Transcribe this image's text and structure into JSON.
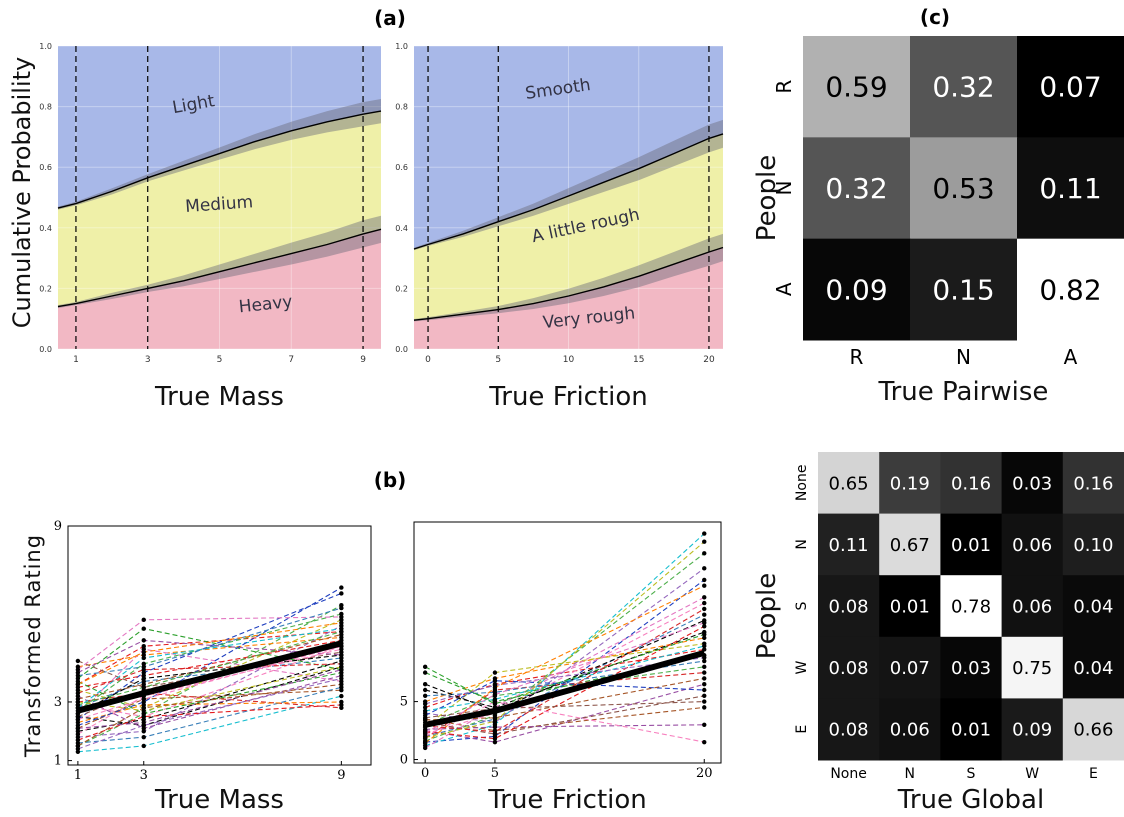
{
  "panel_labels": {
    "a": "(a)",
    "b": "(b)",
    "c": "(c)"
  },
  "chart_data": [
    {
      "id": "a-mass",
      "type": "area",
      "ylabel": "Cumulative Probability",
      "xlabel": "True Mass",
      "xlim": [
        0.5,
        9.5
      ],
      "ylim": [
        0,
        1
      ],
      "xticks": [
        "1",
        "3",
        "5",
        "7",
        "9"
      ],
      "yticks": [
        "0.0",
        "0.2",
        "0.4",
        "0.6",
        "0.8",
        "1.0"
      ],
      "vlines": [
        1,
        3,
        9
      ],
      "grid": true,
      "x": [
        0.5,
        1,
        2,
        3,
        4,
        5,
        6,
        7,
        8,
        9,
        9.5
      ],
      "boundaries": [
        {
          "values": [
            0.14,
            0.15,
            0.175,
            0.2,
            0.225,
            0.255,
            0.285,
            0.315,
            0.345,
            0.38,
            0.395
          ],
          "band_halfwidth": [
            0.005,
            0.005,
            0.01,
            0.012,
            0.018,
            0.024,
            0.03,
            0.036,
            0.04,
            0.045,
            0.045
          ]
        },
        {
          "values": [
            0.465,
            0.48,
            0.52,
            0.565,
            0.605,
            0.645,
            0.685,
            0.72,
            0.75,
            0.775,
            0.785
          ],
          "band_halfwidth": [
            0.005,
            0.006,
            0.01,
            0.012,
            0.016,
            0.02,
            0.025,
            0.03,
            0.035,
            0.04,
            0.04
          ]
        }
      ],
      "regions": [
        {
          "name": "Heavy",
          "color": "#f2b8c4",
          "label_x": 6.3,
          "label_y": 0.13,
          "rotate": -6
        },
        {
          "name": "Medium",
          "color": "#eff0a8",
          "label_x": 5.0,
          "label_y": 0.46,
          "rotate": -4
        },
        {
          "name": "Light",
          "color": "#a8b8e8",
          "label_x": 4.3,
          "label_y": 0.79,
          "rotate": -10
        }
      ]
    },
    {
      "id": "a-friction",
      "type": "area",
      "xlabel": "True Friction",
      "xlim": [
        -1,
        21
      ],
      "ylim": [
        0,
        1
      ],
      "xticks": [
        "0",
        "5",
        "10",
        "15",
        "20"
      ],
      "xtick_values": [
        0,
        5,
        10,
        15,
        20
      ],
      "yticks": [
        "0.0",
        "0.2",
        "0.4",
        "0.6",
        "0.8",
        "1.0"
      ],
      "vlines": [
        0,
        5,
        20
      ],
      "grid": true,
      "x": [
        -1,
        0,
        2.5,
        5,
        7.5,
        10,
        12.5,
        15,
        17.5,
        20,
        21
      ],
      "boundaries": [
        {
          "values": [
            0.095,
            0.1,
            0.115,
            0.13,
            0.15,
            0.175,
            0.205,
            0.24,
            0.28,
            0.32,
            0.335
          ],
          "band_halfwidth": [
            0.004,
            0.005,
            0.008,
            0.012,
            0.018,
            0.024,
            0.03,
            0.036,
            0.04,
            0.045,
            0.045
          ]
        },
        {
          "values": [
            0.33,
            0.345,
            0.38,
            0.42,
            0.46,
            0.505,
            0.55,
            0.595,
            0.645,
            0.695,
            0.71
          ],
          "band_halfwidth": [
            0.004,
            0.005,
            0.01,
            0.015,
            0.02,
            0.026,
            0.032,
            0.038,
            0.042,
            0.046,
            0.046
          ]
        }
      ],
      "regions": [
        {
          "name": "Very rough",
          "color": "#f2b8c4",
          "label_x": 11.5,
          "label_y": 0.085,
          "rotate": -6
        },
        {
          "name": "A little rough",
          "color": "#eff0a8",
          "label_x": 11.3,
          "label_y": 0.39,
          "rotate": -12
        },
        {
          "name": "Smooth",
          "color": "#a8b8e8",
          "label_x": 9.3,
          "label_y": 0.84,
          "rotate": -8
        }
      ]
    },
    {
      "id": "b-mass",
      "type": "line",
      "ylabel": "Transformed  Rating",
      "xlabel": "True Mass",
      "xlim": [
        0.7,
        9.9
      ],
      "ylim": [
        0.85,
        9.0
      ],
      "xticks": [
        "1",
        "3",
        "9"
      ],
      "xtick_values": [
        1,
        3,
        9
      ],
      "yticks": [
        "1",
        "3",
        "9"
      ],
      "ytick_values": [
        1,
        3,
        9
      ],
      "x": [
        1,
        3,
        9
      ],
      "mean_line": [
        2.7,
        3.3,
        5.0
      ],
      "individual_lines": [
        [
          2.5,
          2.2,
          4.2
        ],
        [
          3.6,
          4.9,
          5.4
        ],
        [
          2.8,
          3.7,
          4.5
        ],
        [
          1.5,
          2.6,
          6.3
        ],
        [
          3.2,
          2.1,
          3.9
        ],
        [
          4.2,
          4.6,
          5.2
        ],
        [
          2.1,
          3.1,
          3.4
        ],
        [
          2.9,
          2.5,
          4.9
        ],
        [
          1.3,
          1.5,
          3.2
        ],
        [
          3.8,
          5.5,
          4.1
        ],
        [
          2.4,
          4.0,
          6.7
        ],
        [
          3.0,
          3.3,
          2.8
        ],
        [
          1.8,
          2.0,
          5.6
        ],
        [
          4.4,
          3.5,
          4.7
        ],
        [
          2.6,
          4.8,
          3.7
        ],
        [
          3.4,
          2.8,
          5.8
        ],
        [
          2.0,
          2.4,
          4.4
        ],
        [
          3.5,
          3.9,
          5.1
        ],
        [
          1.6,
          1.8,
          3.5
        ],
        [
          2.7,
          4.3,
          6.0
        ],
        [
          4.0,
          5.1,
          4.6
        ],
        [
          2.3,
          2.9,
          3.0
        ],
        [
          3.1,
          3.6,
          5.3
        ],
        [
          1.9,
          3.2,
          4.8
        ],
        [
          2.8,
          4.5,
          5.5
        ],
        [
          3.7,
          2.6,
          4.0
        ],
        [
          2.2,
          3.0,
          6.9
        ],
        [
          3.3,
          4.1,
          4.3
        ],
        [
          1.4,
          2.2,
          3.8
        ],
        [
          2.5,
          3.4,
          5.0
        ],
        [
          4.1,
          5.8,
          5.9
        ],
        [
          3.0,
          2.7,
          4.2
        ],
        [
          2.6,
          3.8,
          4.6
        ],
        [
          1.7,
          2.5,
          2.9
        ],
        [
          3.9,
          4.2,
          6.2
        ],
        [
          2.9,
          3.5,
          5.4
        ],
        [
          2.1,
          2.3,
          4.1
        ],
        [
          3.6,
          4.7,
          5.7
        ],
        [
          1.5,
          2.8,
          3.6
        ],
        [
          2.4,
          3.1,
          4.9
        ]
      ],
      "line_colors": [
        "#000000",
        "#e41a1c",
        "#377eb8",
        "#4daf4a",
        "#984ea3",
        "#ff7f00",
        "#a65628",
        "#f781bf",
        "#17becf",
        "#2ca02c",
        "#1f3fbf",
        "#d62728",
        "#9467bd",
        "#8c564b",
        "#e377c2",
        "#bcbd22"
      ]
    },
    {
      "id": "b-friction",
      "type": "line",
      "xlabel": "True Friction",
      "xlim": [
        -0.8,
        21.2
      ],
      "ylim": [
        -0.3,
        20.5
      ],
      "xticks": [
        "0",
        "5",
        "20"
      ],
      "xtick_values": [
        0,
        5,
        20
      ],
      "yticks": [
        "0",
        "5"
      ],
      "ytick_values": [
        0,
        5
      ],
      "x": [
        0,
        5,
        20
      ],
      "mean_line": [
        3.0,
        4.2,
        9.2
      ],
      "individual_lines": [
        [
          2.0,
          3.5,
          12.5
        ],
        [
          4.5,
          6.5,
          9.5
        ],
        [
          1.5,
          2.0,
          15.5
        ],
        [
          3.0,
          5.5,
          8.0
        ],
        [
          6.0,
          4.5,
          11.0
        ],
        [
          2.5,
          1.5,
          6.5
        ],
        [
          1.2,
          3.0,
          19.5
        ],
        [
          5.0,
          7.0,
          10.5
        ],
        [
          3.5,
          2.5,
          4.5
        ],
        [
          2.2,
          4.0,
          13.5
        ],
        [
          7.5,
          5.0,
          9.0
        ],
        [
          1.8,
          6.0,
          7.5
        ],
        [
          4.0,
          3.2,
          16.5
        ],
        [
          2.8,
          7.5,
          10.0
        ],
        [
          3.2,
          2.2,
          5.5
        ],
        [
          1.0,
          4.5,
          14.0
        ],
        [
          5.5,
          5.8,
          8.5
        ],
        [
          2.4,
          1.8,
          11.5
        ],
        [
          3.8,
          6.8,
          6.0
        ],
        [
          1.6,
          3.8,
          17.8
        ],
        [
          6.5,
          4.2,
          12.0
        ],
        [
          2.6,
          2.8,
          3.0
        ],
        [
          4.2,
          5.2,
          9.8
        ],
        [
          1.4,
          6.2,
          15.0
        ],
        [
          3.4,
          3.6,
          7.0
        ],
        [
          2.0,
          5.0,
          1.5
        ],
        [
          8.0,
          4.8,
          10.8
        ],
        [
          2.9,
          2.4,
          13.0
        ],
        [
          4.8,
          6.4,
          8.8
        ],
        [
          1.9,
          3.3,
          18.8
        ],
        [
          3.6,
          4.4,
          5.0
        ],
        [
          2.3,
          5.6,
          11.8
        ]
      ],
      "line_colors": [
        "#377eb8",
        "#e41a1c",
        "#1f3fbf",
        "#4daf4a",
        "#000000",
        "#984ea3",
        "#17becf",
        "#ff7f00",
        "#a65628",
        "#f781bf",
        "#2ca02c",
        "#d62728",
        "#9467bd",
        "#bcbd22",
        "#8c564b",
        "#e377c2"
      ]
    },
    {
      "id": "c-pairwise",
      "type": "heatmap",
      "ylabel": "People",
      "xlabel": "True Pairwise",
      "row_labels": [
        "R",
        "N",
        "A"
      ],
      "col_labels": [
        "R",
        "N",
        "A"
      ],
      "values": [
        [
          0.59,
          0.32,
          0.07
        ],
        [
          0.32,
          0.53,
          0.11
        ],
        [
          0.09,
          0.15,
          0.82
        ]
      ],
      "value_labels": [
        [
          "0.59",
          "0.32",
          "0.07"
        ],
        [
          "0.32",
          "0.53",
          "0.11"
        ],
        [
          "0.09",
          "0.15",
          "0.82"
        ]
      ]
    },
    {
      "id": "c-global",
      "type": "heatmap",
      "ylabel": "People",
      "xlabel": "True Global",
      "row_labels": [
        "None",
        "N",
        "S",
        "W",
        "E"
      ],
      "col_labels": [
        "None",
        "N",
        "S",
        "W",
        "E"
      ],
      "values": [
        [
          0.65,
          0.19,
          0.16,
          0.03,
          0.16
        ],
        [
          0.11,
          0.67,
          0.01,
          0.06,
          0.1
        ],
        [
          0.08,
          0.01,
          0.78,
          0.06,
          0.04
        ],
        [
          0.08,
          0.07,
          0.03,
          0.75,
          0.04
        ],
        [
          0.08,
          0.06,
          0.01,
          0.09,
          0.66
        ]
      ],
      "value_labels": [
        [
          "0.65",
          "0.19",
          "0.16",
          "0.03",
          "0.16"
        ],
        [
          "0.11",
          "0.67",
          "0.01",
          "0.06",
          "0.10"
        ],
        [
          "0.08",
          "0.01",
          "0.78",
          "0.06",
          "0.04"
        ],
        [
          "0.08",
          "0.07",
          "0.03",
          "0.75",
          "0.04"
        ],
        [
          "0.08",
          "0.06",
          "0.01",
          "0.09",
          "0.66"
        ]
      ]
    }
  ]
}
